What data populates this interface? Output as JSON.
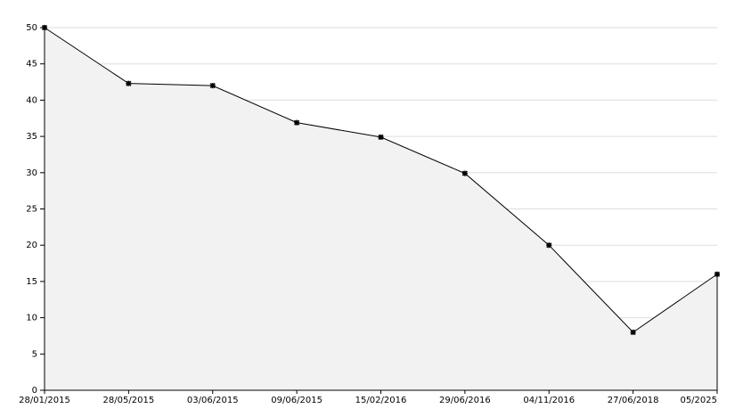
{
  "chart_data": {
    "type": "area",
    "categories": [
      "28/01/2015",
      "28/05/2015",
      "03/06/2015",
      "09/06/2015",
      "15/02/2016",
      "29/06/2016",
      "04/11/2016",
      "27/06/2018",
      "05/2025"
    ],
    "values": [
      50,
      42.3,
      42,
      36.9,
      34.9,
      29.9,
      20,
      8,
      16
    ],
    "color": "#000000",
    "fill": "#f2f2f2",
    "ylim": [
      0,
      50
    ],
    "yticks": [
      0,
      5,
      10,
      15,
      20,
      25,
      30,
      35,
      40,
      45,
      50
    ],
    "grid": true
  }
}
